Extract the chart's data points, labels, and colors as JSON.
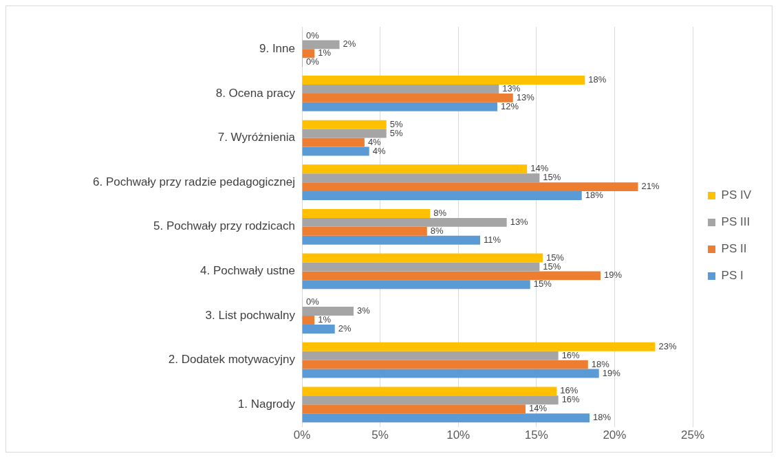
{
  "chart_data": {
    "type": "bar",
    "orientation": "horizontal",
    "categories": [
      "9. Inne",
      "8. Ocena pracy",
      "7. Wyróżnienia",
      "6. Pochwały przy radzie pedagogicznej",
      "5. Pochwały przy rodzicach",
      "4. Pochwały ustne",
      "3. List pochwalny",
      "2. Dodatek motywacyjny",
      "1. Nagrody"
    ],
    "series": [
      {
        "name": "PS IV",
        "color": "#ffc000",
        "values": [
          0,
          18.1,
          5.4,
          14.4,
          8.2,
          15.4,
          0,
          22.6,
          16.3
        ],
        "value_labels": [
          "0%",
          "18%",
          "5%",
          "14%",
          "8%",
          "15%",
          "0%",
          "23%",
          "16%"
        ]
      },
      {
        "name": "PS III",
        "color": "#a5a5a5",
        "values": [
          2.4,
          12.6,
          5.4,
          15.2,
          13.1,
          15.2,
          3.3,
          16.4,
          16.4
        ],
        "value_labels": [
          "2%",
          "13%",
          "5%",
          "15%",
          "13%",
          "15%",
          "3%",
          "16%",
          "16%"
        ]
      },
      {
        "name": "PS II",
        "color": "#ed7d31",
        "values": [
          0.8,
          13.5,
          4.0,
          21.5,
          8.0,
          19.1,
          0.8,
          18.3,
          14.3
        ],
        "value_labels": [
          "1%",
          "13%",
          "4%",
          "21%",
          "8%",
          "19%",
          "1%",
          "18%",
          "14%"
        ]
      },
      {
        "name": "PS I",
        "color": "#5b9bd5",
        "values": [
          0,
          12.5,
          4.3,
          17.9,
          11.4,
          14.6,
          2.1,
          19.0,
          18.4
        ],
        "value_labels": [
          "0%",
          "12%",
          "4%",
          "18%",
          "11%",
          "15%",
          "2%",
          "19%",
          "18%"
        ]
      }
    ],
    "xlim": [
      0,
      25
    ],
    "xticks": [
      {
        "value": 0,
        "label": "0%"
      },
      {
        "value": 5,
        "label": "5%"
      },
      {
        "value": 10,
        "label": "10%"
      },
      {
        "value": 15,
        "label": "15%"
      },
      {
        "value": 20,
        "label": "20%"
      },
      {
        "value": 25,
        "label": "25%"
      }
    ],
    "grid": "x",
    "legend": "right"
  }
}
